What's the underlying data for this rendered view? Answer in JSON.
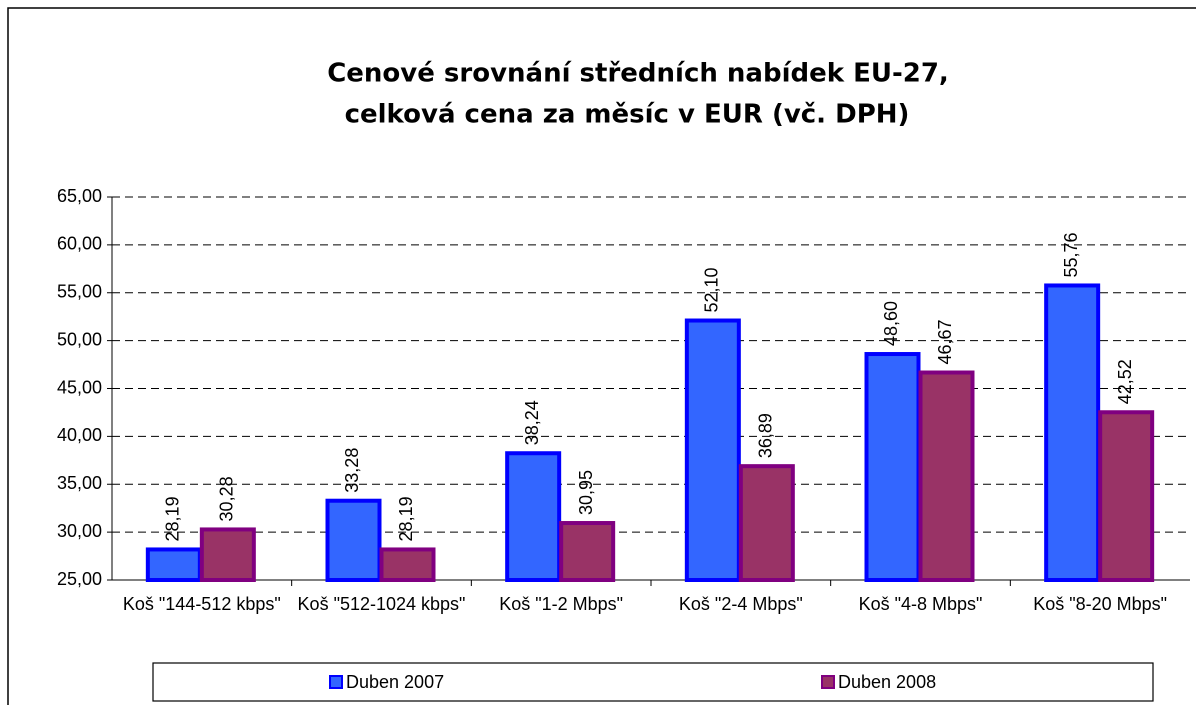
{
  "chart_data": {
    "type": "bar",
    "title": [
      "Cenové srovnání středních nabídek EU-27,",
      "celková cena za měsíc v EUR (vč. DPH)"
    ],
    "categories": [
      "Koš \"144-512 kbps\"",
      "Koš \"512-1024 kbps\"",
      "Koš \"1-2 Mbps\"",
      "Koš \"2-4 Mbps\"",
      "Koš \"4-8 Mbps\"",
      "Koš \"8-20 Mbps\""
    ],
    "series": [
      {
        "name": "Duben 2007",
        "color": "#3366ff",
        "values": [
          28.19,
          33.28,
          38.24,
          52.1,
          48.6,
          55.76
        ],
        "value_labels": [
          "28,19",
          "33,28",
          "38,24",
          "52,10",
          "48,60",
          "55,76"
        ]
      },
      {
        "name": "Duben 2008",
        "color": "#993366",
        "values": [
          30.28,
          28.19,
          30.95,
          36.89,
          46.67,
          42.52
        ],
        "value_labels": [
          "30,28",
          "28,19",
          "30,95",
          "36,89",
          "46,67",
          "42,52"
        ]
      }
    ],
    "ylim": [
      25,
      65
    ],
    "yticks": [
      {
        "value": 25,
        "label": "25,00"
      },
      {
        "value": 30,
        "label": "30,00"
      },
      {
        "value": 35,
        "label": "35,00"
      },
      {
        "value": 40,
        "label": "40,00"
      },
      {
        "value": 45,
        "label": "45,00"
      },
      {
        "value": 50,
        "label": "50,00"
      },
      {
        "value": 55,
        "label": "55,00"
      },
      {
        "value": 60,
        "label": "60,00"
      },
      {
        "value": 65,
        "label": "65,00"
      }
    ],
    "grid": true,
    "legend": "bottom"
  }
}
